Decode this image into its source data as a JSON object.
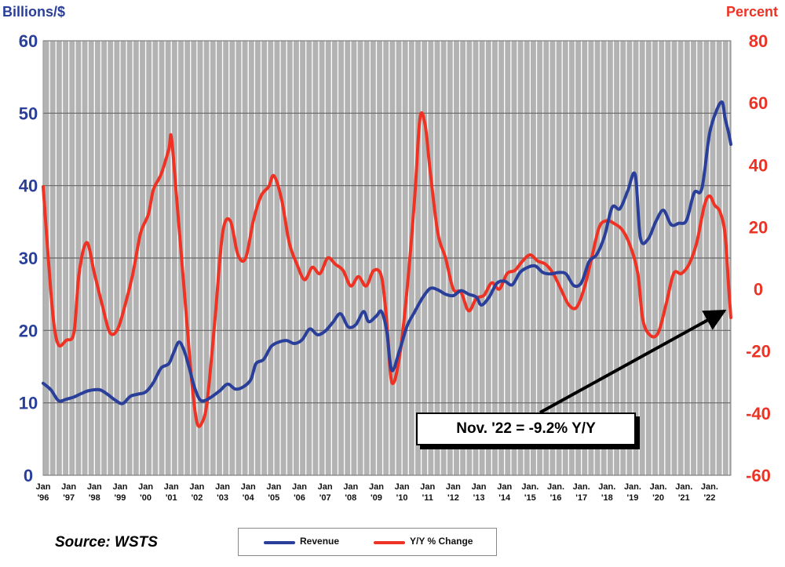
{
  "chart_data": {
    "type": "line",
    "left_axis_title": "Billions/$",
    "right_axis_title": "Percent",
    "left_axis": {
      "ylim": [
        0,
        60
      ],
      "ticks": [
        "0",
        "10",
        "20",
        "30",
        "40",
        "50",
        "60"
      ]
    },
    "right_axis": {
      "ylim": [
        -60,
        80
      ],
      "ticks": [
        "-60",
        "-40",
        "-20",
        "0",
        "20",
        "40",
        "60",
        "80"
      ]
    },
    "x_tick_labels": [
      [
        "Jan",
        "'96"
      ],
      [
        "Jan",
        "'97"
      ],
      [
        "Jan",
        "'98"
      ],
      [
        "Jan",
        "'99"
      ],
      [
        "Jan",
        "'00"
      ],
      [
        "Jan",
        "'01"
      ],
      [
        "Jan",
        "'02"
      ],
      [
        "Jan",
        "'03"
      ],
      [
        "Jan",
        "'04"
      ],
      [
        "Jan",
        "'05"
      ],
      [
        "Jan",
        "'06"
      ],
      [
        "Jan",
        "'07"
      ],
      [
        "Jan",
        "'08"
      ],
      [
        "Jan",
        "'09"
      ],
      [
        "Jan",
        "'10"
      ],
      [
        "Jan",
        "'11"
      ],
      [
        "Jan",
        "'12"
      ],
      [
        "Jan",
        "'13"
      ],
      [
        "Jan",
        "'14"
      ],
      [
        "Jan.",
        "'15"
      ],
      [
        "Jan.",
        "'16"
      ],
      [
        "Jan.",
        "'17"
      ],
      [
        "Jan.",
        "'18"
      ],
      [
        "Jan.",
        "'19"
      ],
      [
        "Jan.",
        "'20"
      ],
      [
        "Jan.",
        "'21"
      ],
      [
        "Jan.",
        "'22"
      ]
    ],
    "x_start_year": 1996,
    "x_end_year": 2022.83,
    "grid": "vertical",
    "colors": {
      "revenue": "#2a3f9a",
      "yoy": "#ee3224",
      "left_axis": "#2a3f9a",
      "right_axis": "#ee3224",
      "plot_bg": "#b3b3b3",
      "grid": "#ffffff"
    },
    "series": [
      {
        "name": "Revenue",
        "axis": "left",
        "points": [
          [
            1996.0,
            12.7
          ],
          [
            1996.3,
            11.8
          ],
          [
            1996.6,
            10.3
          ],
          [
            1996.9,
            10.5
          ],
          [
            1997.2,
            10.8
          ],
          [
            1997.5,
            11.3
          ],
          [
            1997.8,
            11.7
          ],
          [
            1998.2,
            11.8
          ],
          [
            1998.5,
            11.2
          ],
          [
            1998.8,
            10.4
          ],
          [
            1999.1,
            9.9
          ],
          [
            1999.4,
            10.9
          ],
          [
            1999.7,
            11.2
          ],
          [
            2000.0,
            11.5
          ],
          [
            2000.3,
            12.8
          ],
          [
            2000.6,
            14.8
          ],
          [
            2000.9,
            15.4
          ],
          [
            2001.1,
            17.0
          ],
          [
            2001.3,
            18.4
          ],
          [
            2001.5,
            17.2
          ],
          [
            2001.7,
            14.8
          ],
          [
            2001.9,
            12.2
          ],
          [
            2002.1,
            10.5
          ],
          [
            2002.3,
            10.3
          ],
          [
            2002.6,
            10.9
          ],
          [
            2002.9,
            11.7
          ],
          [
            2003.2,
            12.6
          ],
          [
            2003.5,
            11.9
          ],
          [
            2003.8,
            12.2
          ],
          [
            2004.1,
            13.2
          ],
          [
            2004.3,
            15.4
          ],
          [
            2004.6,
            16.0
          ],
          [
            2004.9,
            17.8
          ],
          [
            2005.2,
            18.4
          ],
          [
            2005.5,
            18.6
          ],
          [
            2005.8,
            18.2
          ],
          [
            2006.1,
            18.7
          ],
          [
            2006.4,
            20.2
          ],
          [
            2006.7,
            19.4
          ],
          [
            2007.0,
            19.9
          ],
          [
            2007.3,
            21.1
          ],
          [
            2007.6,
            22.3
          ],
          [
            2007.9,
            20.5
          ],
          [
            2008.2,
            20.8
          ],
          [
            2008.5,
            22.6
          ],
          [
            2008.7,
            21.2
          ],
          [
            2009.0,
            22.0
          ],
          [
            2009.2,
            22.6
          ],
          [
            2009.4,
            20.0
          ],
          [
            2009.6,
            14.5
          ],
          [
            2009.9,
            17.2
          ],
          [
            2010.2,
            20.6
          ],
          [
            2010.5,
            22.6
          ],
          [
            2010.8,
            24.5
          ],
          [
            2011.1,
            25.8
          ],
          [
            2011.4,
            25.6
          ],
          [
            2011.7,
            25.0
          ],
          [
            2012.0,
            24.8
          ],
          [
            2012.3,
            25.5
          ],
          [
            2012.6,
            25.0
          ],
          [
            2012.9,
            24.6
          ],
          [
            2013.1,
            23.5
          ],
          [
            2013.4,
            24.6
          ],
          [
            2013.7,
            26.5
          ],
          [
            2014.0,
            26.8
          ],
          [
            2014.3,
            26.3
          ],
          [
            2014.6,
            28.0
          ],
          [
            2014.9,
            28.7
          ],
          [
            2015.2,
            28.9
          ],
          [
            2015.5,
            28.0
          ],
          [
            2015.8,
            27.8
          ],
          [
            2016.1,
            28.0
          ],
          [
            2016.4,
            27.8
          ],
          [
            2016.7,
            26.2
          ],
          [
            2017.0,
            26.6
          ],
          [
            2017.3,
            29.5
          ],
          [
            2017.6,
            30.5
          ],
          [
            2017.9,
            33.0
          ],
          [
            2018.2,
            37.0
          ],
          [
            2018.5,
            36.8
          ],
          [
            2018.8,
            39.2
          ],
          [
            2019.1,
            41.5
          ],
          [
            2019.3,
            32.8
          ],
          [
            2019.6,
            32.6
          ],
          [
            2019.9,
            35.0
          ],
          [
            2020.2,
            36.6
          ],
          [
            2020.5,
            34.6
          ],
          [
            2020.8,
            34.8
          ],
          [
            2021.1,
            35.2
          ],
          [
            2021.4,
            39.0
          ],
          [
            2021.7,
            39.6
          ],
          [
            2022.0,
            47.2
          ],
          [
            2022.3,
            50.6
          ],
          [
            2022.5,
            51.5
          ],
          [
            2022.6,
            49.4
          ],
          [
            2022.75,
            47.2
          ],
          [
            2022.83,
            45.7
          ]
        ]
      },
      {
        "name": "Y/Y % Change",
        "axis": "right",
        "points": [
          [
            1996.0,
            33.0
          ],
          [
            1996.2,
            10.0
          ],
          [
            1996.4,
            -10.0
          ],
          [
            1996.6,
            -18.0
          ],
          [
            1996.9,
            -16.5
          ],
          [
            1997.2,
            -14.0
          ],
          [
            1997.4,
            5.0
          ],
          [
            1997.7,
            15.0
          ],
          [
            1998.0,
            5.0
          ],
          [
            1998.3,
            -5.0
          ],
          [
            1998.6,
            -14.0
          ],
          [
            1998.9,
            -13.0
          ],
          [
            1999.2,
            -5.0
          ],
          [
            1999.5,
            5.0
          ],
          [
            1999.8,
            18.0
          ],
          [
            2000.1,
            24.0
          ],
          [
            2000.3,
            32.0
          ],
          [
            2000.6,
            37.0
          ],
          [
            2000.9,
            45.0
          ],
          [
            2001.0,
            49.0
          ],
          [
            2001.2,
            30.0
          ],
          [
            2001.4,
            10.0
          ],
          [
            2001.6,
            -10.0
          ],
          [
            2001.8,
            -30.0
          ],
          [
            2002.0,
            -43.0
          ],
          [
            2002.2,
            -43.0
          ],
          [
            2002.4,
            -36.0
          ],
          [
            2002.7,
            -10.0
          ],
          [
            2003.0,
            18.0
          ],
          [
            2003.3,
            22.0
          ],
          [
            2003.6,
            11.0
          ],
          [
            2003.9,
            10.0
          ],
          [
            2004.2,
            22.0
          ],
          [
            2004.5,
            30.0
          ],
          [
            2004.8,
            33.0
          ],
          [
            2005.0,
            36.5
          ],
          [
            2005.3,
            29.0
          ],
          [
            2005.6,
            15.0
          ],
          [
            2005.9,
            8.0
          ],
          [
            2006.2,
            3.0
          ],
          [
            2006.5,
            7.0
          ],
          [
            2006.8,
            5.0
          ],
          [
            2007.1,
            10.0
          ],
          [
            2007.4,
            8.0
          ],
          [
            2007.7,
            6.0
          ],
          [
            2008.0,
            1.0
          ],
          [
            2008.3,
            4.0
          ],
          [
            2008.6,
            1.0
          ],
          [
            2008.9,
            6.0
          ],
          [
            2009.2,
            4.0
          ],
          [
            2009.4,
            -10.0
          ],
          [
            2009.6,
            -30.0
          ],
          [
            2009.9,
            -22.0
          ],
          [
            2010.2,
            0.0
          ],
          [
            2010.5,
            30.0
          ],
          [
            2010.7,
            55.0
          ],
          [
            2010.9,
            53.0
          ],
          [
            2011.1,
            38.0
          ],
          [
            2011.4,
            18.0
          ],
          [
            2011.7,
            10.0
          ],
          [
            2012.0,
            0.0
          ],
          [
            2012.3,
            -1.0
          ],
          [
            2012.6,
            -7.0
          ],
          [
            2012.9,
            -3.0
          ],
          [
            2013.2,
            -2.0
          ],
          [
            2013.5,
            2.0
          ],
          [
            2013.8,
            0.0
          ],
          [
            2014.1,
            5.0
          ],
          [
            2014.4,
            6.0
          ],
          [
            2014.7,
            9.0
          ],
          [
            2015.0,
            11.0
          ],
          [
            2015.3,
            9.0
          ],
          [
            2015.6,
            8.0
          ],
          [
            2015.9,
            5.0
          ],
          [
            2016.2,
            0.0
          ],
          [
            2016.5,
            -5.0
          ],
          [
            2016.8,
            -6.0
          ],
          [
            2017.1,
            0.0
          ],
          [
            2017.4,
            10.0
          ],
          [
            2017.7,
            20.0
          ],
          [
            2018.0,
            22.0
          ],
          [
            2018.3,
            21.0
          ],
          [
            2018.6,
            19.0
          ],
          [
            2018.9,
            14.0
          ],
          [
            2019.2,
            5.0
          ],
          [
            2019.4,
            -10.0
          ],
          [
            2019.7,
            -15.0
          ],
          [
            2020.0,
            -14.0
          ],
          [
            2020.3,
            -5.0
          ],
          [
            2020.6,
            5.0
          ],
          [
            2020.9,
            5.0
          ],
          [
            2021.2,
            8.0
          ],
          [
            2021.5,
            15.0
          ],
          [
            2021.8,
            27.0
          ],
          [
            2022.0,
            30.0
          ],
          [
            2022.2,
            27.0
          ],
          [
            2022.4,
            25.0
          ],
          [
            2022.6,
            18.0
          ],
          [
            2022.75,
            0.0
          ],
          [
            2022.83,
            -9.2
          ]
        ]
      }
    ],
    "annotation": {
      "text": "Nov. '22 = -9.2% Y/Y",
      "x": 2022.83,
      "y": -6
    }
  },
  "source_label": "Source: WSTS"
}
